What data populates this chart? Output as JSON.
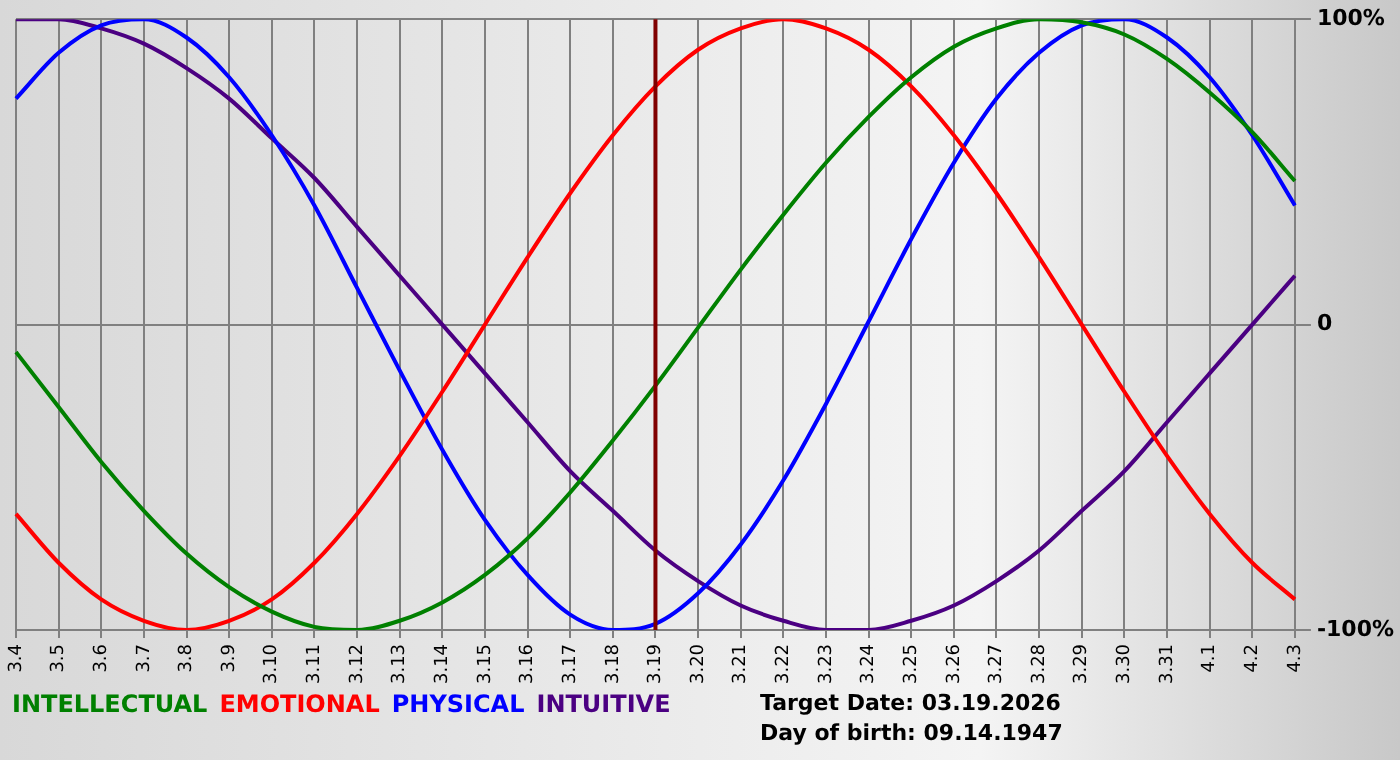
{
  "chart_data": {
    "type": "line",
    "categories": [
      "3.4",
      "3.5",
      "3.6",
      "3.7",
      "3.8",
      "3.9",
      "3.10",
      "3.11",
      "3.12",
      "3.13",
      "3.14",
      "3.15",
      "3.16",
      "3.17",
      "3.18",
      "3.19",
      "3.20",
      "3.21",
      "3.22",
      "3.23",
      "3.24",
      "3.25",
      "3.26",
      "3.27",
      "3.28",
      "3.29",
      "3.30",
      "3.31",
      "4.1",
      "4.2",
      "4.3"
    ],
    "series": [
      {
        "name": "INTELLECTUAL",
        "color": "#008000",
        "values": [
          -9,
          -27,
          -45,
          -61,
          -75,
          -86,
          -94,
          -99,
          -100,
          -97,
          -91,
          -82,
          -70,
          -55,
          -38,
          -20,
          -1,
          18,
          36,
          53,
          68,
          81,
          91,
          97,
          100,
          99,
          95,
          87,
          76,
          63,
          47
        ]
      },
      {
        "name": "EMOTIONAL",
        "color": "#ff0000",
        "values": [
          -62,
          -78,
          -90,
          -97,
          -100,
          -97,
          -90,
          -78,
          -62,
          -43,
          -22,
          0,
          22,
          43,
          62,
          78,
          90,
          97,
          100,
          97,
          90,
          78,
          62,
          43,
          22,
          0,
          -22,
          -43,
          -62,
          -78,
          -90
        ]
      },
      {
        "name": "PHYSICAL",
        "color": "#0000ff",
        "values": [
          74,
          89,
          98,
          100,
          94,
          81,
          62,
          39,
          12,
          -15,
          -41,
          -64,
          -82,
          -95,
          -100,
          -98,
          -88,
          -72,
          -51,
          -26,
          1,
          28,
          53,
          74,
          89,
          98,
          100,
          94,
          81,
          62,
          39
        ]
      },
      {
        "name": "INTUITIVE",
        "color": "#4b0082",
        "values": [
          100,
          100,
          97,
          92,
          84,
          74,
          61,
          48,
          32,
          16,
          0,
          -16,
          -32,
          -48,
          -61,
          -74,
          -84,
          -92,
          -97,
          -100,
          -100,
          -97,
          -92,
          -84,
          -74,
          -61,
          -48,
          -32,
          -16,
          0,
          16
        ]
      }
    ],
    "ylim": [
      -100,
      100
    ],
    "yticks": [
      {
        "value": -100,
        "label": "-100%"
      },
      {
        "value": 0,
        "label": "0"
      },
      {
        "value": 100,
        "label": "100%"
      }
    ],
    "ref_lines": [
      {
        "axis": "x",
        "value": "3.19",
        "color": "#800000"
      }
    ],
    "annotations": [
      "Target Date: 03.19.2026",
      "Day of birth: 09.14.1947"
    ],
    "grid": true,
    "legend": "bottom left",
    "marker": "none",
    "line_style": "solid"
  }
}
